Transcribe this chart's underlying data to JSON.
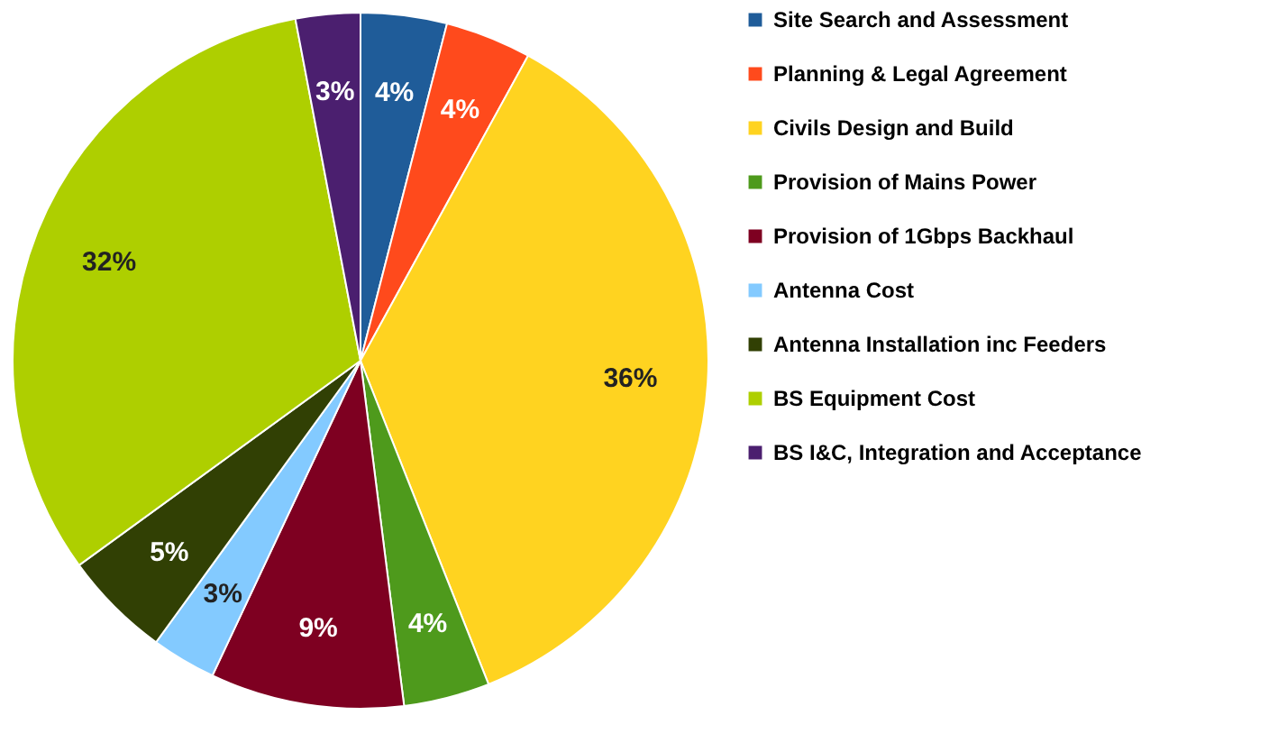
{
  "chart_data": {
    "type": "pie",
    "categories": [
      "Site Search and Assessment",
      "Planning & Legal Agreement",
      "Civils Design and Build",
      "Provision of Mains Power",
      "Provision of 1Gbps Backhaul",
      "Antenna Cost",
      "Antenna Installation inc Feeders",
      "BS Equipment Cost",
      "BS I&C, Integration and Acceptance"
    ],
    "values": [
      4,
      4,
      36,
      4,
      9,
      3,
      5,
      32,
      3
    ],
    "colors": [
      "#1f5c99",
      "#ff4a1c",
      "#ffd320",
      "#4e9a1c",
      "#7e0021",
      "#83caff",
      "#314004",
      "#aecf00",
      "#4b1f6f"
    ],
    "value_labels": [
      "4%",
      "4%",
      "36%",
      "4%",
      "9%",
      "3%",
      "5%",
      "32%",
      "3%"
    ],
    "legend": "right"
  }
}
